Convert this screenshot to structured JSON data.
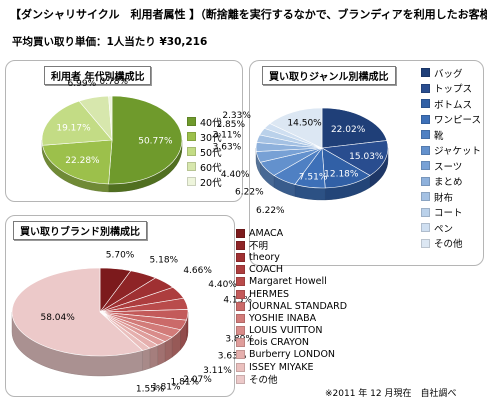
{
  "header": {
    "title": "【ダンシャリサイクル　利用者属性 】（断捨離を実行するなかで、ブランディアを利用したお客様）",
    "average": "平均買い取り単価：1人当たり ¥30,216"
  },
  "footnote": "※2011 年 12 月現在　自社調べ",
  "chart_data": [
    {
      "type": "pie",
      "title": "利用者 年代別構成比",
      "categories": [
        "40代",
        "30代",
        "50代",
        "60代",
        "20代"
      ],
      "values": [
        50.77,
        22.28,
        19.17,
        6.99,
        0.78
      ],
      "labels": [
        "50.77%",
        "22.28%",
        "19.17%",
        "6.99%",
        "0.78%"
      ],
      "colors": [
        "#6f9a2c",
        "#9cc04b",
        "#c3dc85",
        "#d7e7ad",
        "#eef5dc"
      ],
      "legend_position": "right"
    },
    {
      "type": "pie",
      "title": "買い取りジャンル別構成比",
      "categories": [
        "バッグ",
        "トップス",
        "ボトムス",
        "ワンピース",
        "靴",
        "ジャケット",
        "スーツ",
        "まとめ",
        "財布",
        "コート",
        "ペン",
        "その他"
      ],
      "values": [
        22.02,
        15.03,
        12.18,
        7.51,
        6.22,
        6.22,
        4.4,
        3.63,
        3.11,
        2.85,
        2.33,
        14.5
      ],
      "labels": [
        "22.02%",
        "15.03%",
        "12.18%",
        "7.51%",
        "6.22%",
        "6.22%",
        "4.40%",
        "3.63%",
        "3.11%",
        "2.85%",
        "2.33%",
        "14.50%"
      ],
      "colors": [
        "#1f3f78",
        "#294d8f",
        "#3160a6",
        "#3d70b8",
        "#4f80c3",
        "#6391cd",
        "#78a1d5",
        "#8eb1dc",
        "#a4c1e3",
        "#bad1ea",
        "#cfdff1",
        "#dce7f3"
      ],
      "legend_position": "right"
    },
    {
      "type": "pie",
      "title": "買い取りブランド別構成比",
      "categories": [
        "AMACA",
        "不明",
        "theory",
        "COACH",
        "Margaret Howell",
        "HERMES",
        "JOURNAL STANDARD",
        "YOSHIE INABA",
        "LOUIS VUITTON",
        "Lois CRAYON",
        "Burberry LONDON",
        "ISSEY MIYAKE",
        "その他"
      ],
      "values": [
        5.7,
        5.18,
        4.66,
        4.4,
        4.15,
        3.89,
        3.63,
        3.11,
        2.07,
        1.81,
        1.81,
        1.55,
        58.04
      ],
      "labels": [
        "5.70%",
        "5.18%",
        "4.66%",
        "4.40%",
        "4.15%",
        "3.89%",
        "3.63%",
        "3.11%",
        "2.07%",
        "1.81%",
        "1.81%",
        "1.55%",
        "58.04%"
      ],
      "colors": [
        "#7c1a1c",
        "#8e2426",
        "#9f3032",
        "#ad3d3e",
        "#b94b4b",
        "#c35a5a",
        "#cb6a69",
        "#d27b79",
        "#d98c8a",
        "#df9d9b",
        "#e5afad",
        "#eac0be",
        "#ecc9c9"
      ],
      "legend_position": "right"
    }
  ]
}
